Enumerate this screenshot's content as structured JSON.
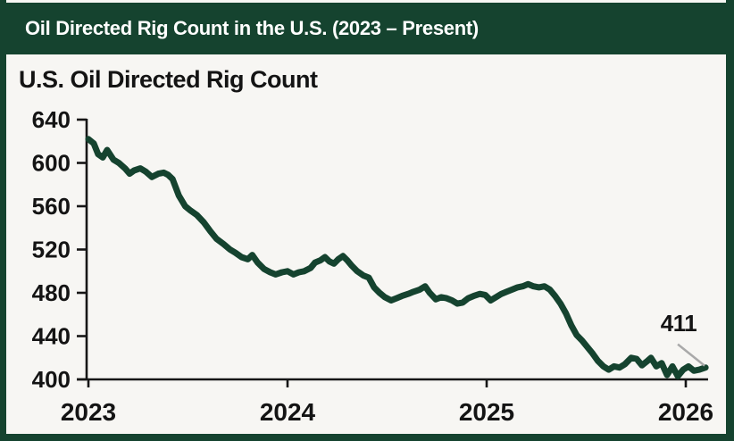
{
  "header": {
    "title": "Oil Directed Rig Count in the U.S. (2023 – Present)"
  },
  "chart_data": {
    "type": "line",
    "title": "U.S. Oil Directed Rig Count",
    "xlabel": "",
    "ylabel": "",
    "legend": "none",
    "grid": false,
    "line_color": "#15432f",
    "axis_color": "#161616",
    "background_color": "#f7f6f3",
    "x_ticks": [
      2023,
      2024,
      2025,
      2026
    ],
    "y_ticks": [
      400,
      440,
      480,
      520,
      560,
      600,
      640
    ],
    "xlim": [
      2023.0,
      2026.12
    ],
    "ylim": [
      400,
      640
    ],
    "annotation": {
      "label": "411",
      "x": 2026.099,
      "y": 411,
      "leader_color": "#a9a9a9"
    },
    "last_value": 411,
    "x": [
      2023.0,
      2023.027,
      2023.049,
      2023.072,
      2023.094,
      2023.126,
      2023.153,
      2023.184,
      2023.207,
      2023.229,
      2023.261,
      2023.288,
      2023.319,
      2023.351,
      2023.378,
      2023.4,
      2023.423,
      2023.454,
      2023.486,
      2023.513,
      2023.544,
      2023.58,
      2023.612,
      2023.643,
      2023.679,
      2023.711,
      2023.738,
      2023.769,
      2023.801,
      2023.823,
      2023.85,
      2023.882,
      2023.913,
      2023.94,
      2023.972,
      2024.0,
      2024.03,
      2024.057,
      2024.084,
      2024.116,
      2024.138,
      2024.165,
      2024.188,
      2024.21,
      2024.233,
      2024.255,
      2024.278,
      2024.3,
      2024.323,
      2024.35,
      2024.381,
      2024.408,
      2024.435,
      2024.462,
      2024.489,
      2024.52,
      2024.547,
      2024.574,
      2024.606,
      2024.633,
      2024.664,
      2024.691,
      2024.714,
      2024.745,
      2024.772,
      2024.799,
      2024.826,
      2024.853,
      2024.88,
      2024.907,
      2024.934,
      2024.966,
      2024.993,
      2025.02,
      2025.047,
      2025.074,
      2025.101,
      2025.128,
      2025.155,
      2025.181,
      2025.208,
      2025.235,
      2025.263,
      2025.29,
      2025.317,
      2025.344,
      2025.371,
      2025.398,
      2025.425,
      2025.452,
      2025.479,
      2025.505,
      2025.532,
      2025.559,
      2025.586,
      2025.613,
      2025.64,
      2025.667,
      2025.694,
      2025.726,
      2025.753,
      2025.78,
      2025.807,
      2025.825,
      2025.852,
      2025.879,
      2025.906,
      2025.933,
      2025.96,
      2025.987,
      2026.014,
      2026.041,
      2026.068,
      2026.099
    ],
    "values": [
      622,
      618,
      608,
      605,
      612,
      603,
      600,
      595,
      590,
      593,
      595,
      592,
      587,
      590,
      591,
      589,
      585,
      570,
      560,
      556,
      552,
      545,
      537,
      530,
      525,
      520,
      517,
      513,
      511,
      515,
      508,
      502,
      499,
      497,
      499,
      500,
      497,
      499,
      500,
      503,
      508,
      510,
      513,
      509,
      507,
      511,
      514,
      510,
      505,
      500,
      496,
      494,
      485,
      480,
      476,
      473,
      475,
      477,
      479,
      481,
      483,
      486,
      480,
      474,
      476,
      475,
      473,
      470,
      471,
      475,
      477,
      479,
      478,
      473,
      476,
      479,
      481,
      483,
      485,
      486,
      488,
      486,
      485,
      486,
      483,
      477,
      470,
      461,
      450,
      441,
      436,
      430,
      424,
      417,
      412,
      409,
      412,
      411,
      414,
      420,
      419,
      413,
      417,
      420,
      412,
      415,
      404,
      412,
      403,
      409,
      412,
      408,
      409,
      411
    ]
  }
}
